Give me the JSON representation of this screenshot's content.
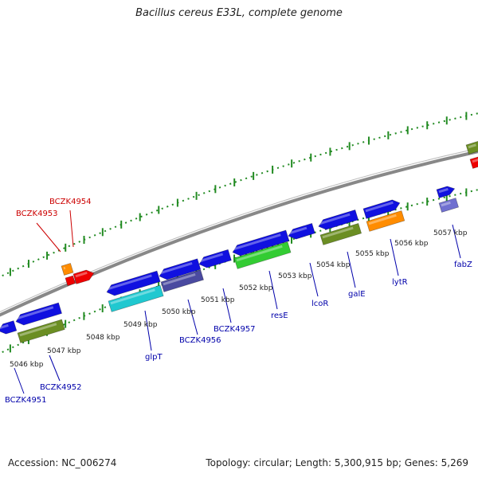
{
  "title": "Bacillus cereus E33L, complete genome",
  "footer": {
    "accession": "Accession: NC_006274",
    "topology": "Topology: circular; Length: 5,300,915 bp; Genes: 5,269"
  },
  "colors": {
    "cds": "#1010e0",
    "cyan": "#20c8d0",
    "olive": "#6b8e23",
    "green": "#33cc33",
    "orange": "#ff8c00",
    "red": "#ee0000",
    "slate": "#4a4aa0",
    "lavender": "#7070d0",
    "backbone": "#888888",
    "ticks": "#228b22",
    "label_blue": "#0000aa",
    "label_red": "#cc0000"
  },
  "scale_labels": [
    "5046 kbp",
    "5047 kbp",
    "5048 kbp",
    "5049 kbp",
    "5050 kbp",
    "5051 kbp",
    "5052 kbp",
    "5053 kbp",
    "5054 kbp",
    "5055 kbp",
    "5056 kbp",
    "5057 kbp"
  ],
  "gene_labels": [
    {
      "name": "BCZK4951",
      "color": "blue"
    },
    {
      "name": "BCZK4952",
      "color": "blue"
    },
    {
      "name": "glpT",
      "color": "blue"
    },
    {
      "name": "BCZK4956",
      "color": "blue"
    },
    {
      "name": "BCZK4957",
      "color": "blue"
    },
    {
      "name": "resE",
      "color": "blue"
    },
    {
      "name": "lcoR",
      "color": "blue"
    },
    {
      "name": "galE",
      "color": "blue"
    },
    {
      "name": "lytR",
      "color": "blue"
    },
    {
      "name": "fabZ",
      "color": "blue"
    },
    {
      "name": "BCZK4953",
      "color": "red"
    },
    {
      "name": "BCZK4954",
      "color": "red"
    }
  ]
}
